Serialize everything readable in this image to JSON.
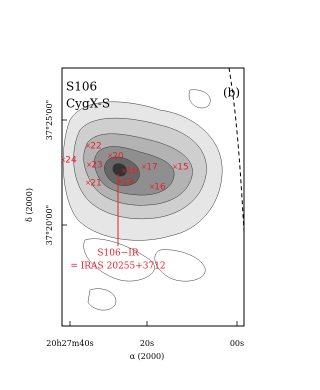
{
  "panel": {
    "title": "S106",
    "subtitle": "CygX-S",
    "label": "(b)"
  },
  "axes": {
    "x_label": "α (2000)",
    "y_label": "δ (2000)",
    "x_ticks": [
      "20h27m40s",
      "20s",
      "00s"
    ],
    "y_ticks": [
      "37°25'00\"",
      "37°20'00\""
    ]
  },
  "sources": [
    "22",
    "24",
    "23",
    "20",
    "18",
    "17",
    "15",
    "21",
    "19",
    "16"
  ],
  "annotation": [
    "S106−IR",
    "= IRAS 20255+3712"
  ]
}
